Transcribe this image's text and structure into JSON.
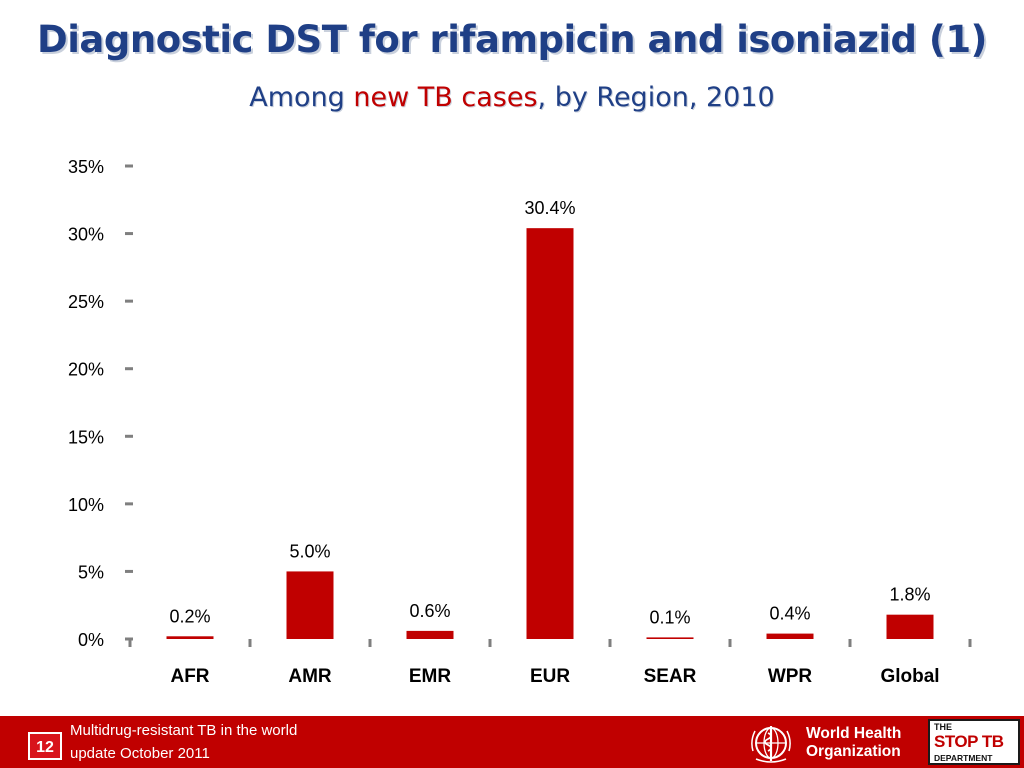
{
  "title": "Diagnostic DST for rifampicin and isoniazid (1)",
  "subtitle": {
    "before": "Among ",
    "highlight": "new TB cases",
    "after": ", by Region, 2010"
  },
  "chart_data": {
    "type": "bar",
    "categories": [
      "AFR",
      "AMR",
      "EMR",
      "EUR",
      "SEAR",
      "WPR",
      "Global"
    ],
    "values": [
      0.2,
      5.0,
      0.6,
      30.4,
      0.1,
      0.4,
      1.8
    ],
    "data_labels": [
      "0.2%",
      "5.0%",
      "0.6%",
      "30.4%",
      "0.1%",
      "0.4%",
      "1.8%"
    ],
    "ylim": [
      0,
      35
    ],
    "yticks": [
      0,
      5,
      10,
      15,
      20,
      25,
      30,
      35
    ],
    "ytick_labels": [
      "0%",
      "5%",
      "10%",
      "15%",
      "20%",
      "25%",
      "30%",
      "35%"
    ],
    "xlabel": "",
    "ylabel": "",
    "grid": false,
    "bar_color": "#c00000"
  },
  "footer": {
    "slide_number": "12",
    "line1": "Multidrug-resistant TB in the world",
    "line2": "update October 2011",
    "who_line1": "World Health",
    "who_line2": "Organization",
    "stoptb_line1": "THE",
    "stoptb_line2": "STOP TB",
    "stoptb_line3": "DEPARTMENT",
    "color": "#c00000"
  },
  "title_color": "#1f3f86"
}
